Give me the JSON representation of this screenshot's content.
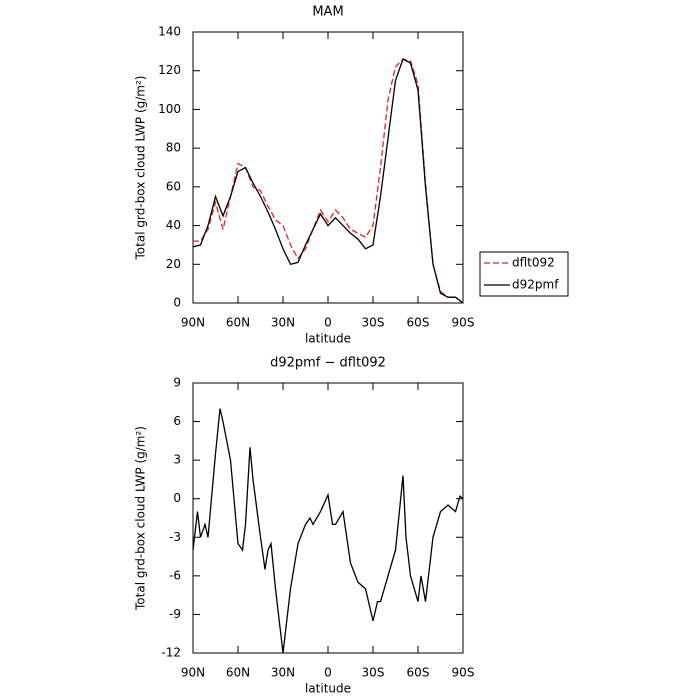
{
  "chart_data": [
    {
      "type": "line",
      "title": "MAM",
      "xlabel": "latitude",
      "ylabel": "Total grd-box cloud LWP (g/m²)",
      "x": [
        90,
        85,
        80,
        75,
        70,
        65,
        60,
        55,
        50,
        45,
        40,
        35,
        30,
        25,
        20,
        15,
        10,
        5,
        0,
        -5,
        -10,
        -15,
        -20,
        -25,
        -30,
        -35,
        -40,
        -45,
        -50,
        -55,
        -60,
        -65,
        -70,
        -75,
        -80,
        -85,
        -90
      ],
      "series": [
        {
          "name": "dflt092",
          "color": "#e8231e",
          "linestyle": "dashed",
          "values": [
            32,
            32,
            38,
            52,
            38,
            55,
            72,
            70,
            60,
            58,
            50,
            43,
            40,
            30,
            23,
            28,
            38,
            48,
            42,
            48,
            44,
            38,
            36,
            34,
            40,
            70,
            105,
            122,
            126,
            125,
            113,
            62,
            20,
            6,
            3,
            3,
            0
          ]
        },
        {
          "name": "d92pmf",
          "color": "#000000",
          "linestyle": "solid",
          "values": [
            29,
            30,
            40,
            55,
            45,
            55,
            68,
            70,
            62,
            55,
            47,
            38,
            28,
            20,
            21,
            30,
            38,
            46,
            40,
            44,
            40,
            36,
            33,
            28,
            30,
            55,
            85,
            115,
            126,
            124,
            110,
            60,
            20,
            5,
            3,
            3,
            0
          ]
        }
      ],
      "xlim": [
        90,
        -90
      ],
      "xticks": [
        {
          "value": 90,
          "label": "90N"
        },
        {
          "value": 60,
          "label": "60N"
        },
        {
          "value": 30,
          "label": "30N"
        },
        0,
        {
          "value": -30,
          "label": "30S"
        },
        {
          "value": -60,
          "label": "60S"
        },
        {
          "value": -90,
          "label": "90S"
        }
      ],
      "ylim": [
        0,
        140
      ],
      "yticks": [
        0,
        20,
        40,
        60,
        80,
        100,
        120,
        140
      ]
    },
    {
      "type": "line",
      "title": "d92pmf − dflt092",
      "xlabel": "latitude",
      "ylabel": "Total grd-box cloud LWP (g/m²)",
      "x": [
        90,
        87,
        85,
        82,
        80,
        75,
        72,
        70,
        65,
        60,
        57,
        55,
        52,
        50,
        45,
        42,
        40,
        38,
        35,
        30,
        25,
        20,
        15,
        12,
        10,
        5,
        0,
        -3,
        -5,
        -10,
        -15,
        -20,
        -25,
        -30,
        -33,
        -35,
        -40,
        -45,
        -50,
        -52,
        -55,
        -60,
        -62,
        -65,
        -67,
        -70,
        -75,
        -80,
        -85,
        -88,
        -90
      ],
      "values": [
        -4,
        -1,
        -3,
        -2,
        -3,
        3.5,
        7,
        6,
        3,
        -3.5,
        -4,
        -2,
        4,
        1.5,
        -3,
        -5.5,
        -4,
        -3.5,
        -7,
        -12,
        -7,
        -3.5,
        -2,
        -1.5,
        -2,
        -1,
        0.3,
        -2,
        -2,
        -1,
        -5,
        -6.5,
        -7,
        -9.5,
        -8,
        -8,
        -6,
        -4,
        1.8,
        -3,
        -6,
        -8,
        -6,
        -8,
        -6,
        -3,
        -1,
        -0.5,
        -1,
        0.2,
        0
      ],
      "color": "#000000",
      "xlim": [
        90,
        -90
      ],
      "xticks": [
        {
          "value": 90,
          "label": "90N"
        },
        {
          "value": 60,
          "label": "60N"
        },
        {
          "value": 30,
          "label": "30N"
        },
        0,
        {
          "value": -30,
          "label": "30S"
        },
        {
          "value": -60,
          "label": "60S"
        },
        {
          "value": -90,
          "label": "90S"
        }
      ],
      "ylim": [
        -12,
        9
      ],
      "yticks": [
        -12,
        -9,
        -6,
        -3,
        0,
        3,
        6,
        9
      ]
    }
  ]
}
